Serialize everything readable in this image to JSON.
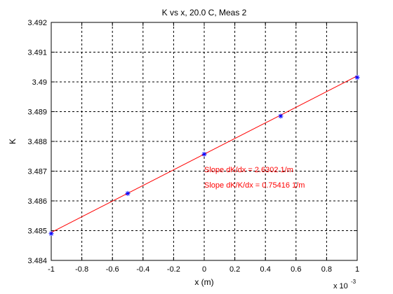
{
  "chart_data": {
    "type": "scatter",
    "title": "K vs x, 20.0 C, Meas 2",
    "xlabel": "x (m)",
    "ylabel": "K",
    "x_multiplier_label": "x 10",
    "x_multiplier_exponent": "-3",
    "xlim": [
      -1,
      1
    ],
    "ylim": [
      3.484,
      3.492
    ],
    "x_ticks": [
      -1,
      -0.8,
      -0.6,
      -0.4,
      -0.2,
      0,
      0.2,
      0.4,
      0.6,
      0.8,
      1
    ],
    "x_tick_labels": [
      "-1",
      "-0.8",
      "-0.6",
      "-0.4",
      "-0.2",
      "0",
      "0.2",
      "0.4",
      "0.6",
      "0.8",
      "1"
    ],
    "y_ticks": [
      3.484,
      3.485,
      3.486,
      3.487,
      3.488,
      3.489,
      3.49,
      3.491,
      3.492
    ],
    "y_tick_labels": [
      "3.484",
      "3.485",
      "3.486",
      "3.487",
      "3.488",
      "3.489",
      "3.49",
      "3.491",
      "3.492"
    ],
    "grid": true,
    "series": [
      {
        "type": "scatter",
        "marker": "*",
        "color": "#0000ff",
        "x": [
          -1,
          -0.5,
          0,
          0.5,
          1
        ],
        "y": [
          3.4849,
          3.48625,
          3.48757,
          3.48885,
          3.49015
        ]
      },
      {
        "type": "line",
        "color": "#ff0000",
        "x": [
          -1,
          1
        ],
        "y": [
          3.48494,
          3.4902
        ]
      }
    ],
    "annotations": [
      {
        "text": "Slope dK/dx = 2.6302 1/m",
        "x": 0,
        "y": 3.48696,
        "color": "#ff0000"
      },
      {
        "text": "Slope dK/K/dx = 0.75416 1/m",
        "x": 0,
        "y": 3.48645,
        "color": "#ff0000"
      }
    ]
  }
}
